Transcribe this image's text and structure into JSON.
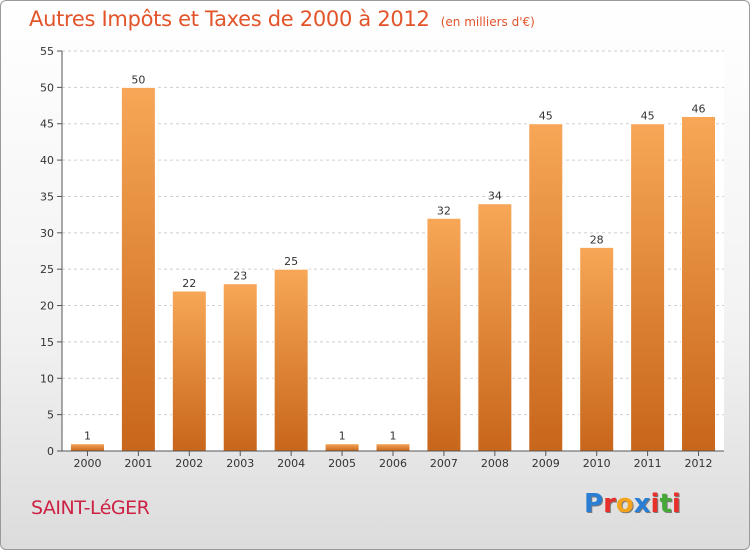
{
  "header": {
    "title": "Autres Impôts et Taxes de 2000 à 2012",
    "subtitle": "(en milliers d'€)"
  },
  "footer": {
    "commune": "SAINT-LéGER",
    "logo_letters": [
      "P",
      "r",
      "o",
      "x",
      "i",
      "t",
      "i"
    ],
    "logo_colors": [
      "#2a7fd4",
      "#e8302a",
      "#f4a41c",
      "#2a7fd4",
      "#e8302a",
      "#47a83a",
      "#e8302a"
    ]
  },
  "chart_data": {
    "type": "bar",
    "categories": [
      "2000",
      "2001",
      "2002",
      "2003",
      "2004",
      "2005",
      "2006",
      "2007",
      "2008",
      "2009",
      "2010",
      "2011",
      "2012"
    ],
    "values": [
      1,
      50,
      22,
      23,
      25,
      1,
      1,
      32,
      34,
      45,
      28,
      45,
      46
    ],
    "ylim": [
      0,
      55
    ],
    "yticks": [
      0,
      5,
      10,
      15,
      20,
      25,
      30,
      35,
      40,
      45,
      50,
      55
    ],
    "grid": true,
    "bar_color_top": "#f7a757",
    "bar_color_bottom": "#c8661b"
  }
}
